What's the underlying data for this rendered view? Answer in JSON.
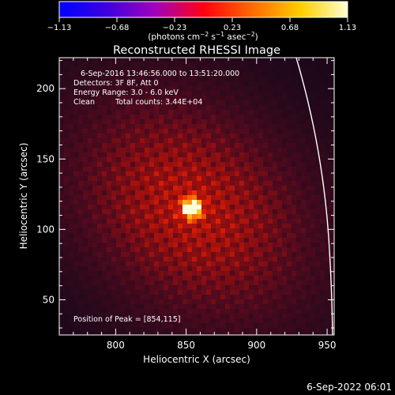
{
  "chart_data": {
    "type": "heatmap",
    "title": "Reconstructed RHESSI Image",
    "xlabel": "Heliocentric X (arcsec)",
    "ylabel": "Heliocentric Y (arcsec)",
    "xlim": [
      760,
      955
    ],
    "ylim": [
      25,
      222
    ],
    "x_ticks": [
      800,
      850,
      900,
      950
    ],
    "y_ticks": [
      50,
      100,
      150,
      200
    ],
    "grid": false,
    "peak": {
      "x": 854,
      "y": 115
    },
    "colorbar": {
      "ticks": [
        "−1.13",
        "−0.68",
        "−0.23",
        "0.23",
        "0.68",
        "1.13"
      ],
      "range": [
        -1.13,
        1.13
      ],
      "units_text": "(photons cm",
      "units_sup1": "−2",
      "units_mid": " s",
      "units_sup2": "−1",
      "units_mid2": " asec",
      "units_sup3": "−2",
      "units_end": ")"
    },
    "annotations": {
      "time_range": "6-Sep-2016 13:46:56.000 to 13:51:20.000",
      "detectors": "Detectors: 3F 8F, Att 0",
      "energy": "Energy Range: 3.0 - 6.0 keV",
      "clean": "Clean",
      "counts": "Total counts: 3.44E+04",
      "peak_text": "Position of Peak = [854,115]"
    },
    "footer_date": "6-Sep-2022 06:01"
  }
}
